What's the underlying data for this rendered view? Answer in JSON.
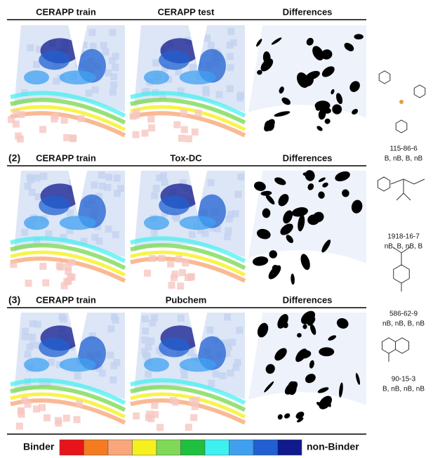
{
  "rows": [
    {
      "columns": [
        "CERAPP train",
        "CERAPP test",
        "Differences"
      ]
    },
    {
      "label": "(2)",
      "columns": [
        "CERAPP train",
        "Tox-DC",
        "Differences"
      ]
    },
    {
      "label": "(3)",
      "columns": [
        "CERAPP train",
        "Pubchem",
        "Differences"
      ]
    }
  ],
  "molecules": [
    {
      "id": "115-86-6",
      "classes": "B, nB, B, nB"
    },
    {
      "id": "1918-16-7",
      "classes": "nB, B, nB, B"
    },
    {
      "id": "586-62-9",
      "classes": "nB, nB, B, nB"
    },
    {
      "id": "90-15-3",
      "classes": "B, nB, nB, nB"
    }
  ],
  "legend": {
    "left": "Binder",
    "right": "non-Binder",
    "colors": [
      "#e8141b",
      "#f47b20",
      "#f9a77a",
      "#f6f01e",
      "#7ed957",
      "#1fbf3f",
      "#3ef0f0",
      "#3fa0f0",
      "#2060d0",
      "#101a8c"
    ]
  }
}
